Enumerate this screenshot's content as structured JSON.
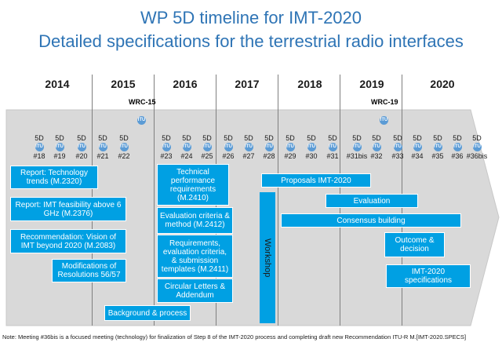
{
  "title": {
    "line1": "WP 5D timeline for IMT-2020",
    "line2": "Detailed specifications for the terrestrial radio interfaces"
  },
  "years": [
    "2014",
    "2015",
    "2016",
    "2017",
    "2018",
    "2019",
    "2020"
  ],
  "wrc": [
    "WRC-15",
    "WRC-19"
  ],
  "meetings": [
    "#18",
    "#19",
    "#20",
    "#21",
    "#22",
    "#23",
    "#24",
    "#25",
    "#26",
    "#27",
    "#28",
    "#29",
    "#30",
    "#31",
    "#31bis",
    "#32",
    "#33",
    "#34",
    "#35",
    "#36",
    "#36bis"
  ],
  "meeting_prefix": "5D",
  "itu_label": "ITU",
  "boxes": {
    "report_tech": "Report: Technology trends (M.2320)",
    "report_feas": "Report: IMT feasibility  above 6 GHz (M.2376)",
    "rec_vision": "Recommendation: Vision of IMT beyond 2020 (M.2083)",
    "modifications": "Modifications of Resolutions 56/57",
    "tech_perf": "Technical performance requirements (M.2410)",
    "eval_criteria": "Evaluation criteria & method (M.2412)",
    "requirements": "Requirements, evaluation criteria, & submission templates (M.2411)",
    "circular": "Circular Letters & Addendum",
    "background": "Background & process",
    "workshop": "Workshop",
    "proposals": "Proposals IMT-2020",
    "evaluation": "Evaluation",
    "consensus": "Consensus building",
    "outcome": "Outcome & decision",
    "specs": "IMT-2020 specifications"
  },
  "colors": {
    "accent": "#00a0e3",
    "title": "#2e74b5",
    "band": "#d9d9d9"
  },
  "note": "Note: Meeting #36bis is a focused meeting (technology) for finalization of Step 8 of the IMT-2020 process and completing draft new Recommendation ITU-R M.[IMT-2020.SPECS]"
}
